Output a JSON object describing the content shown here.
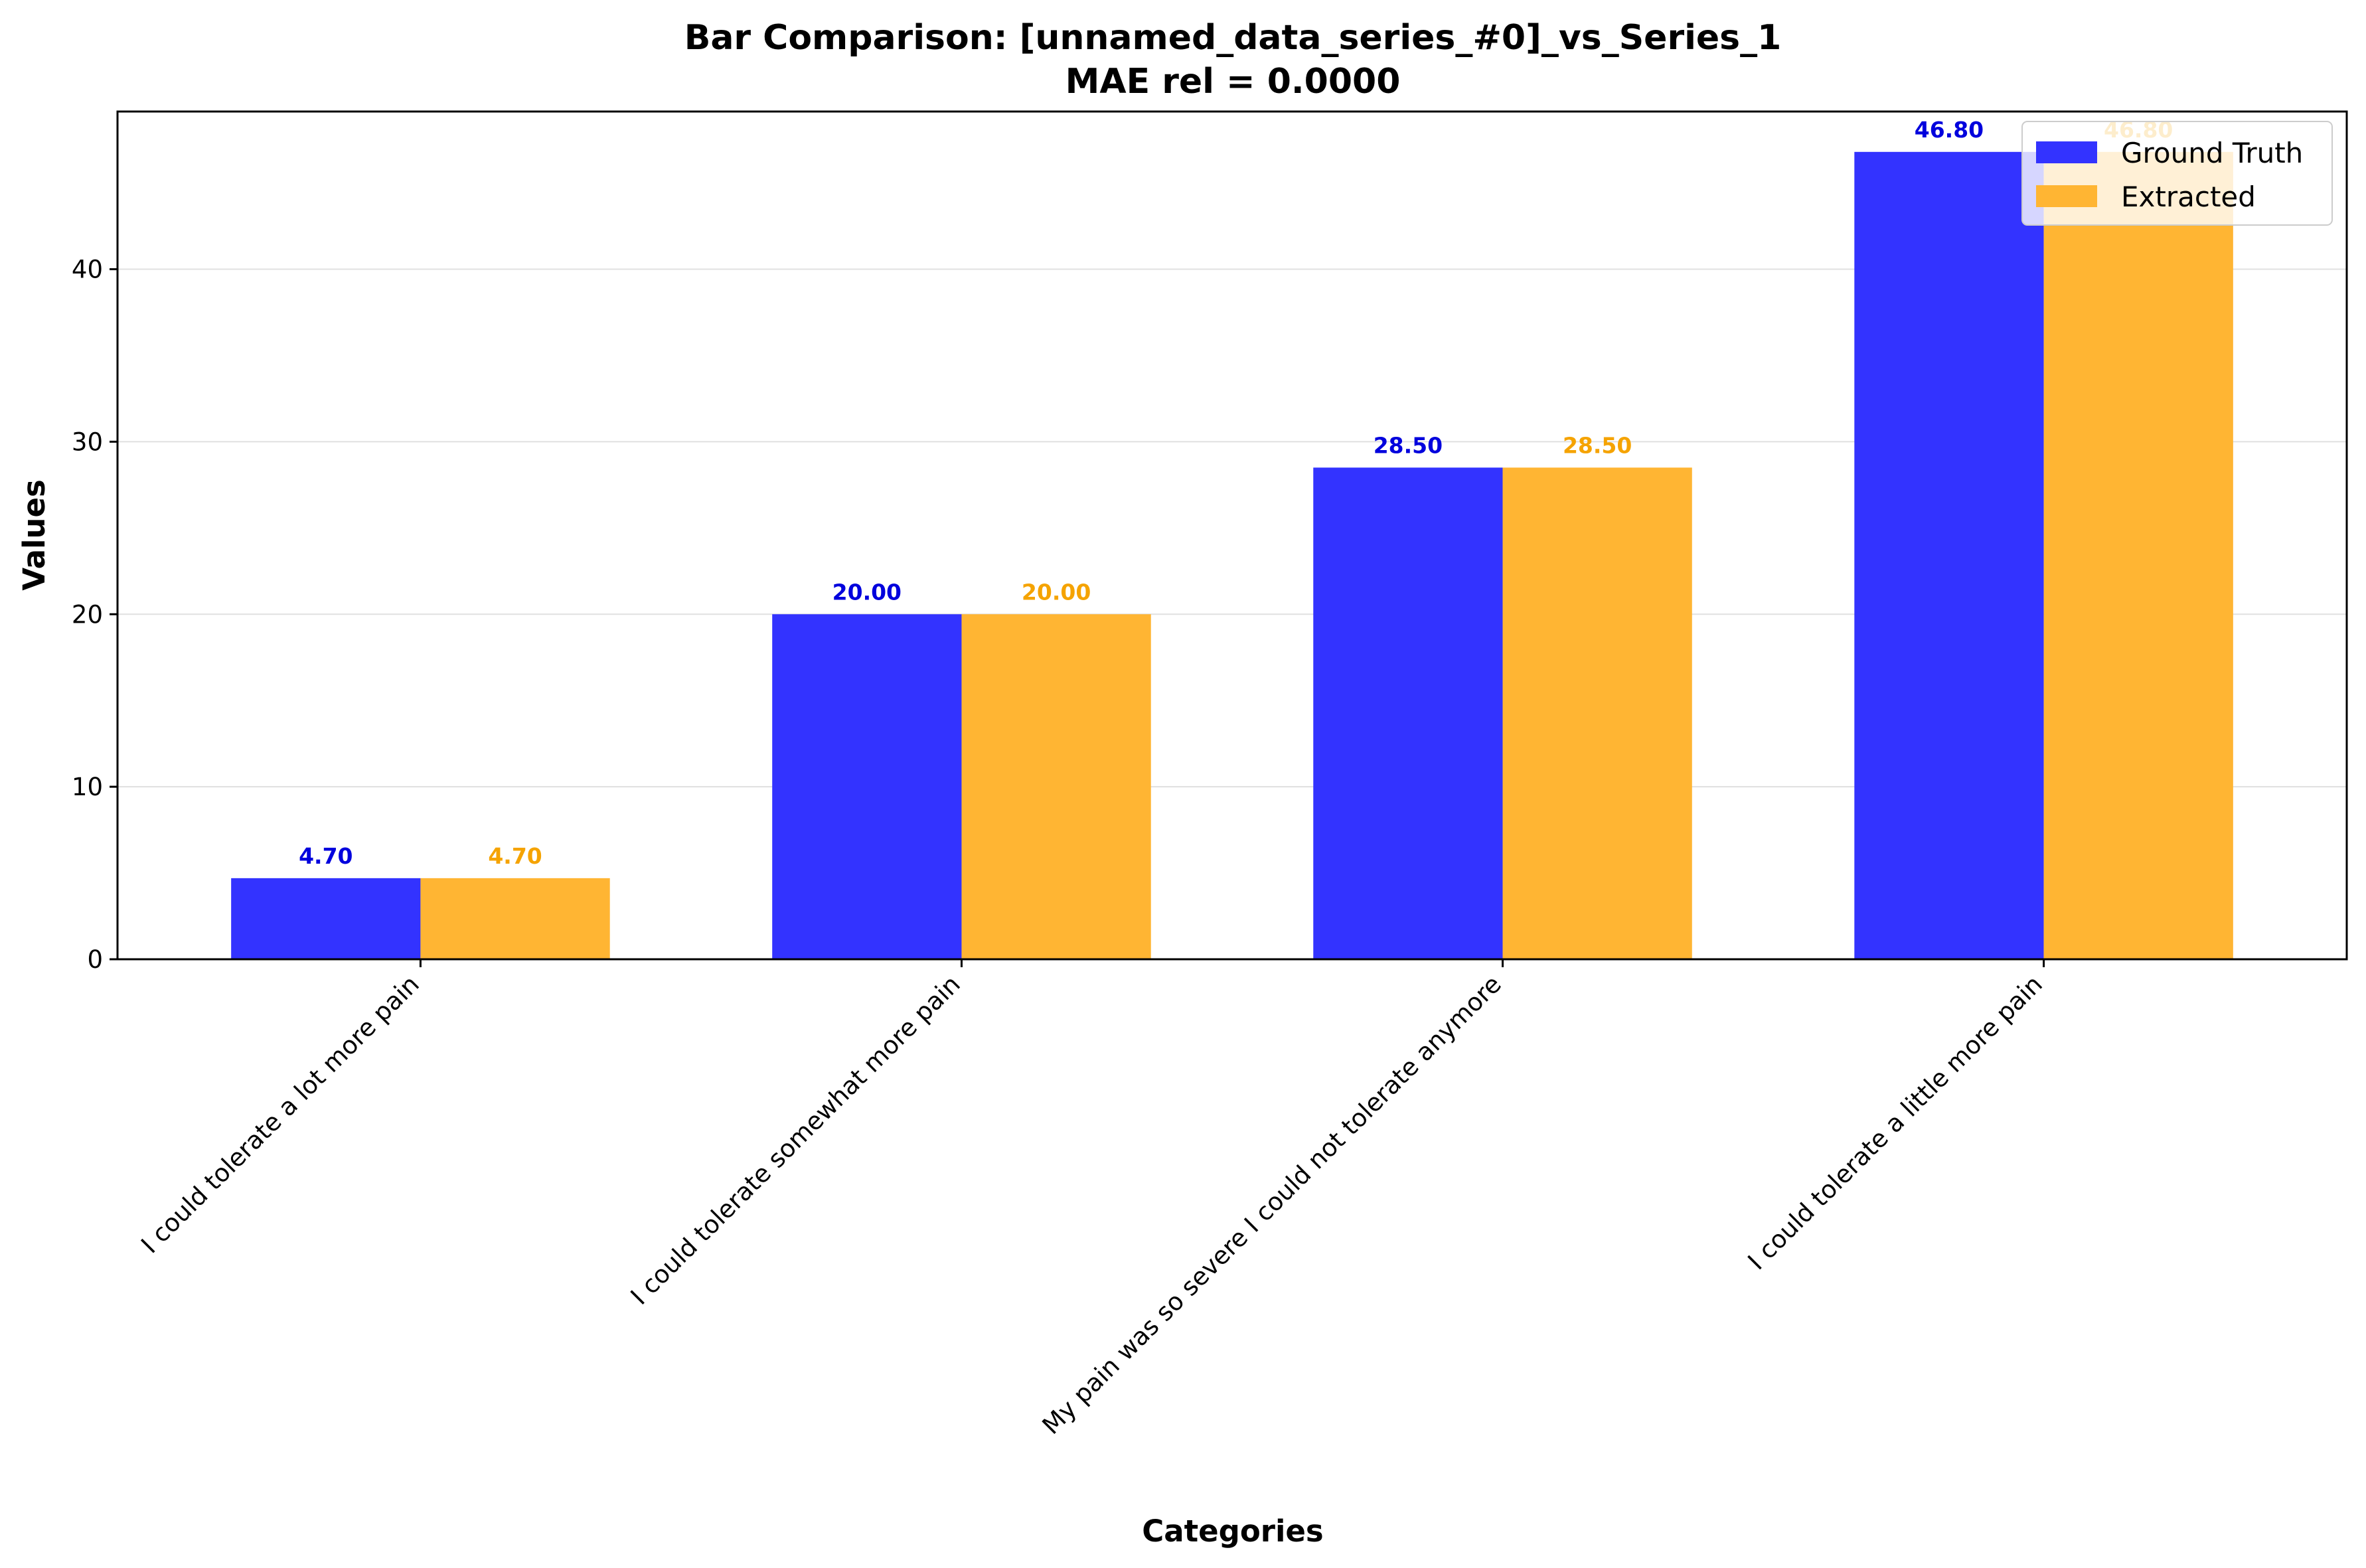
{
  "chart_data": {
    "type": "bar",
    "title": "Bar Comparison: [unnamed_data_series_#0]_vs_Series_1",
    "subtitle": "MAE rel = 0.0000",
    "xlabel": "Categories",
    "ylabel": "Values",
    "ylim": [
      0,
      49.14
    ],
    "yticks": [
      0,
      10,
      20,
      30,
      40
    ],
    "grid": "horizontal",
    "legend_position": "top-right",
    "categories": [
      "I could tolerate a lot more pain",
      "I could tolerate somewhat more pain",
      "My pain was so severe I could not tolerate anymore",
      "I could tolerate a little more pain"
    ],
    "series": [
      {
        "name": "Ground Truth",
        "color": "#3333ff",
        "label_color": "#0000dd",
        "values": [
          4.7,
          20.0,
          28.5,
          46.8
        ],
        "labels": [
          "4.70",
          "20.00",
          "28.50",
          "46.80"
        ]
      },
      {
        "name": "Extracted",
        "color": "#ffb533",
        "label_color": "#f5a300",
        "values": [
          4.7,
          20.0,
          28.5,
          46.8
        ],
        "labels": [
          "4.70",
          "20.00",
          "28.50",
          "46.80"
        ]
      }
    ]
  }
}
